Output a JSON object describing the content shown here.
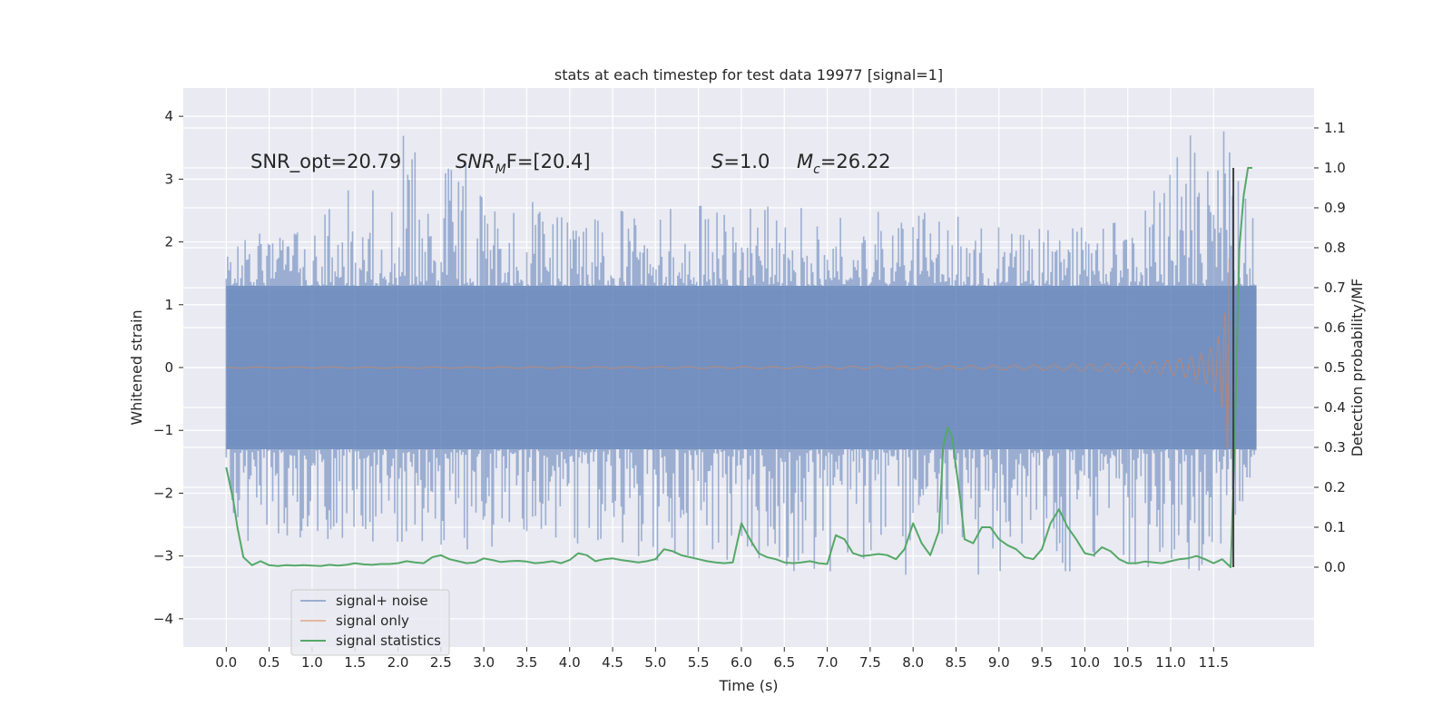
{
  "chart_data": {
    "type": "line",
    "title": "stats at each timestep for test data 19977 [signal=1]",
    "xlabel": "Time (s)",
    "ylabel_left": "Whitened strain",
    "ylabel_right": "Detection probability/MF",
    "xlim": [
      -0.5,
      12.67
    ],
    "ylim_left": [
      -4.45,
      4.45
    ],
    "ylim_right": [
      -0.2,
      1.2
    ],
    "x_ticks": [
      0.0,
      0.5,
      1.0,
      1.5,
      2.0,
      2.5,
      3.0,
      3.5,
      4.0,
      4.5,
      5.0,
      5.5,
      6.0,
      6.5,
      7.0,
      7.5,
      8.0,
      8.5,
      9.0,
      9.5,
      10.0,
      10.5,
      11.0,
      11.5
    ],
    "x_tick_labels": [
      "0.0",
      "0.5",
      "1.0",
      "1.5",
      "2.0",
      "2.5",
      "3.0",
      "3.5",
      "4.0",
      "4.5",
      "5.0",
      "5.5",
      "6.0",
      "6.5",
      "7.0",
      "7.5",
      "8.0",
      "8.5",
      "9.0",
      "9.5",
      "10.0",
      "10.5",
      "11.0",
      "11.5"
    ],
    "y_left_ticks": [
      4,
      3,
      2,
      1,
      0,
      -1,
      -2,
      -3,
      -4
    ],
    "y_left_tick_labels": [
      "4",
      "3",
      "2",
      "1",
      "0",
      "−1",
      "−2",
      "−3",
      "−4"
    ],
    "y_right_ticks": [
      1.1,
      1.0,
      0.9,
      0.8,
      0.7,
      0.6,
      0.5,
      0.4,
      0.3,
      0.2,
      0.1,
      0.0
    ],
    "y_right_tick_labels": [
      "1.1",
      "1.0",
      "0.9",
      "0.8",
      "0.7",
      "0.6",
      "0.5",
      "0.4",
      "0.3",
      "0.2",
      "0.1",
      "0.0"
    ],
    "grid": true,
    "legend_position": "lower-left",
    "annotations": {
      "snr_opt": "SNR_opt=20.79",
      "snr_mf_base": "SNR",
      "snr_mf_sub": "M",
      "snr_mf_rest": "F=[20.4]",
      "s_sym": "S",
      "s_val": "=1.0",
      "mc_sym": "M",
      "mc_sub": "c",
      "mc_val": "=26.22"
    },
    "series": [
      {
        "name": "signal+ noise",
        "color": "#4c72b0",
        "axis": "left",
        "x_range": [
          0.0,
          12.0
        ],
        "envelope_upper": [
          [
            0.0,
            2.1
          ],
          [
            1.0,
            2.2
          ],
          [
            1.5,
            3.15
          ],
          [
            2.1,
            3.75
          ],
          [
            3.1,
            3.2
          ],
          [
            4.0,
            2.5
          ],
          [
            6.0,
            2.6
          ],
          [
            8.0,
            2.5
          ],
          [
            10.5,
            2.3
          ],
          [
            11.0,
            3.5
          ],
          [
            11.6,
            4.1
          ],
          [
            12.0,
            2.4
          ]
        ],
        "envelope_lower": [
          [
            0.0,
            -2.5
          ],
          [
            0.4,
            -3.15
          ],
          [
            1.3,
            -2.8
          ],
          [
            4.0,
            -3.05
          ],
          [
            6.6,
            -3.35
          ],
          [
            8.2,
            -3.35
          ],
          [
            10.0,
            -3.25
          ],
          [
            11.55,
            -3.25
          ],
          [
            12.0,
            -1.6
          ]
        ]
      },
      {
        "name": "signal only",
        "color": "#dd8452",
        "axis": "left",
        "x_range": [
          0.0,
          11.68
        ],
        "peak_amplitude": 3.9
      },
      {
        "name": "signal statistics",
        "color": "#55a868",
        "axis": "right",
        "x": [
          0.0,
          0.08,
          0.13,
          0.2,
          0.3,
          0.4,
          0.5,
          0.6,
          0.7,
          0.8,
          0.9,
          1.0,
          1.1,
          1.2,
          1.3,
          1.4,
          1.5,
          1.6,
          1.7,
          1.8,
          1.9,
          2.0,
          2.1,
          2.2,
          2.3,
          2.4,
          2.5,
          2.6,
          2.7,
          2.8,
          2.9,
          3.0,
          3.1,
          3.2,
          3.3,
          3.4,
          3.5,
          3.6,
          3.7,
          3.8,
          3.9,
          4.0,
          4.1,
          4.2,
          4.3,
          4.4,
          4.5,
          4.6,
          4.7,
          4.8,
          4.9,
          5.0,
          5.1,
          5.2,
          5.3,
          5.4,
          5.5,
          5.6,
          5.7,
          5.8,
          5.9,
          6.0,
          6.1,
          6.2,
          6.3,
          6.4,
          6.5,
          6.6,
          6.7,
          6.8,
          6.9,
          7.0,
          7.1,
          7.2,
          7.3,
          7.4,
          7.5,
          7.6,
          7.7,
          7.8,
          7.9,
          8.0,
          8.1,
          8.2,
          8.3,
          8.35,
          8.4,
          8.45,
          8.5,
          8.55,
          8.6,
          8.7,
          8.8,
          8.9,
          9.0,
          9.1,
          9.2,
          9.3,
          9.4,
          9.5,
          9.6,
          9.7,
          9.8,
          9.9,
          10.0,
          10.1,
          10.2,
          10.3,
          10.4,
          10.5,
          10.6,
          10.7,
          10.8,
          10.9,
          11.0,
          11.1,
          11.2,
          11.3,
          11.4,
          11.5,
          11.6,
          11.65,
          11.7,
          11.75,
          11.8,
          11.85,
          11.9,
          11.95
        ],
        "values": [
          0.25,
          0.17,
          0.1,
          0.025,
          0.005,
          0.015,
          0.005,
          0.003,
          0.005,
          0.004,
          0.005,
          0.004,
          0.003,
          0.006,
          0.004,
          0.006,
          0.01,
          0.007,
          0.006,
          0.008,
          0.008,
          0.01,
          0.015,
          0.012,
          0.01,
          0.025,
          0.03,
          0.02,
          0.015,
          0.01,
          0.012,
          0.022,
          0.018,
          0.013,
          0.015,
          0.016,
          0.014,
          0.01,
          0.012,
          0.015,
          0.01,
          0.018,
          0.035,
          0.03,
          0.015,
          0.02,
          0.022,
          0.018,
          0.015,
          0.012,
          0.015,
          0.02,
          0.045,
          0.04,
          0.03,
          0.025,
          0.02,
          0.015,
          0.012,
          0.01,
          0.012,
          0.11,
          0.07,
          0.035,
          0.025,
          0.02,
          0.012,
          0.01,
          0.012,
          0.015,
          0.01,
          0.008,
          0.08,
          0.07,
          0.035,
          0.028,
          0.03,
          0.033,
          0.03,
          0.02,
          0.045,
          0.11,
          0.06,
          0.03,
          0.09,
          0.3,
          0.35,
          0.33,
          0.25,
          0.17,
          0.07,
          0.06,
          0.1,
          0.1,
          0.07,
          0.055,
          0.045,
          0.025,
          0.02,
          0.045,
          0.11,
          0.145,
          0.1,
          0.07,
          0.035,
          0.03,
          0.05,
          0.04,
          0.02,
          0.01,
          0.01,
          0.014,
          0.012,
          0.01,
          0.015,
          0.02,
          0.022,
          0.028,
          0.02,
          0.01,
          0.02,
          0.01,
          0.0,
          0.35,
          0.8,
          0.93,
          1.0,
          1.0
        ]
      }
    ],
    "vertical_line": {
      "x": 11.73,
      "color": "#404040",
      "y_right_range": [
        0.0,
        1.0
      ]
    }
  }
}
